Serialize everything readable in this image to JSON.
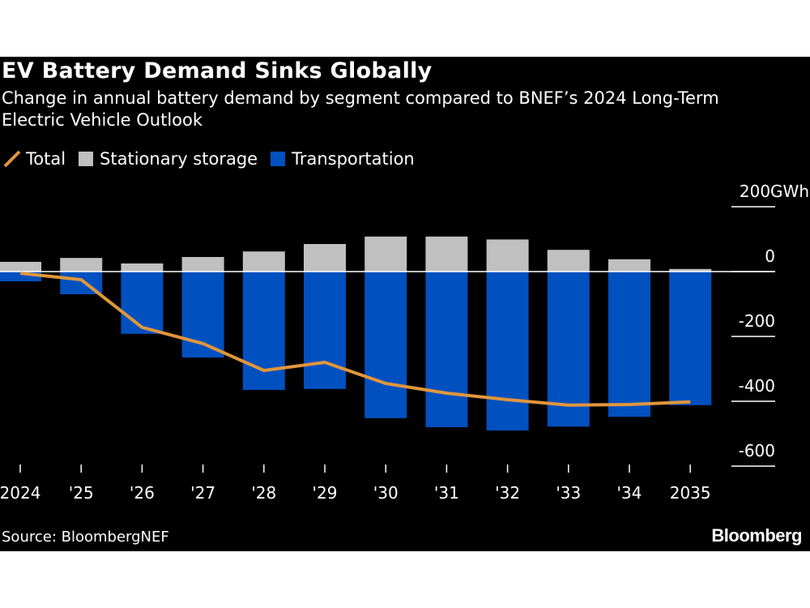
{
  "title": "EV Battery Demand Sinks Globally",
  "subtitle": "Change in annual battery demand by segment compared to BNEF’s 2024 Long-Term Electric Vehicle Outlook",
  "source": "Source: BloombergNEF",
  "logo": "Bloomberg",
  "chart_data": {
    "type": "bar",
    "stacked": true,
    "categories": [
      "2024",
      "'25",
      "'26",
      "'27",
      "'28",
      "'29",
      "'30",
      "'31",
      "'32",
      "'33",
      "'34",
      "2035"
    ],
    "series": [
      {
        "name": "Stationary storage",
        "type": "bar",
        "color": "#c0c0c0",
        "values": [
          30,
          42,
          25,
          45,
          62,
          85,
          108,
          108,
          99,
          67,
          38,
          8
        ]
      },
      {
        "name": "Transportation",
        "type": "bar",
        "color": "#0050c0",
        "values": [
          -30,
          -70,
          -192,
          -265,
          -365,
          -362,
          -452,
          -480,
          -490,
          -478,
          -448,
          -412
        ]
      },
      {
        "name": "Total",
        "type": "line",
        "color": "#e0963c",
        "values": [
          -5,
          -25,
          -172,
          -222,
          -305,
          -280,
          -345,
          -375,
          -395,
          -412,
          -410,
          -402
        ]
      }
    ],
    "ylabel_unit": "GWh",
    "yticks": [
      200,
      0,
      -200,
      -400,
      -600
    ],
    "ytick_labels": [
      "200GWh",
      "0",
      "-200",
      "-400",
      "-600"
    ],
    "ylim": [
      -600,
      200
    ],
    "legend_position": "top-left",
    "grid": true
  }
}
